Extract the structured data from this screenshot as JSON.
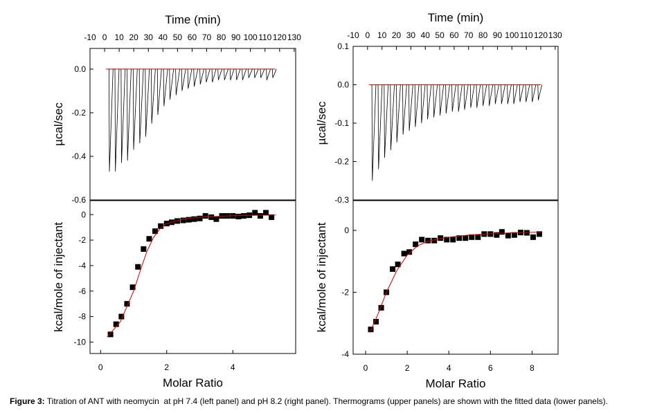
{
  "caption": {
    "label": "Figure 3:",
    "text": " Titration of ANT with neomycin  at pH 7.4 (left panel) and pH 8.2 (right panel). Thermograms (upper panels) are shown with the fitted data (lower panels)."
  },
  "chart_data": [
    {
      "type": "spike",
      "xlabel": "Time (min)",
      "ylabel": "µcal/sec",
      "xaxis_position": "top",
      "xlim": [
        -10,
        131
      ],
      "xticks": [
        -10,
        0,
        10,
        20,
        30,
        40,
        50,
        60,
        70,
        80,
        90,
        100,
        110,
        120,
        130
      ],
      "ylim": [
        -0.6,
        0.095
      ],
      "yticks": [
        {
          "value": 0,
          "label": "0.0"
        },
        -0.2,
        -0.4,
        -0.6
      ],
      "color": "#000000",
      "baseline": 0,
      "baseline_color": "#cc0000",
      "x": [
        3,
        7.1,
        11.3,
        15.4,
        19.6,
        23.8,
        27.9,
        32,
        36.2,
        40.4,
        44.5,
        48.7,
        52.8,
        57,
        61.1,
        65.3,
        69.4,
        73.6,
        77.7,
        81.9,
        86,
        90.2,
        94.3,
        98.5,
        102.6,
        106.8,
        110.9,
        115
      ],
      "values": [
        -0.47,
        -0.47,
        -0.43,
        -0.42,
        -0.37,
        -0.34,
        -0.31,
        -0.25,
        -0.21,
        -0.17,
        -0.14,
        -0.12,
        -0.1,
        -0.09,
        -0.08,
        -0.07,
        -0.06,
        -0.06,
        -0.05,
        -0.05,
        -0.05,
        -0.05,
        -0.05,
        -0.04,
        -0.04,
        -0.04,
        -0.05,
        -0.04
      ]
    },
    {
      "type": "scatter",
      "xlabel": "Molar Ratio",
      "ylabel": "kcal/mole of injectant",
      "xaxis_position": "bottom",
      "xlim": [
        -0.32,
        5.9
      ],
      "xticks": [
        0,
        2,
        4
      ],
      "ylim": [
        -10.9,
        1.1
      ],
      "yticks": [
        0,
        -2,
        -4,
        -6,
        -8,
        -10
      ],
      "series": [
        {
          "color": "#000000",
          "marker": "square",
          "x": [
            0.3,
            0.47,
            0.63,
            0.8,
            0.97,
            1.13,
            1.3,
            1.47,
            1.65,
            1.82,
            2.0,
            2.15,
            2.32,
            2.5,
            2.67,
            2.83,
            3.0,
            3.17,
            3.35,
            3.5,
            3.67,
            3.83,
            4.0,
            4.17,
            4.33,
            4.5,
            4.67,
            4.83,
            5.0,
            5.17
          ],
          "values": [
            -9.4,
            -8.6,
            -8.0,
            -7.0,
            -5.7,
            -4.1,
            -2.7,
            -1.9,
            -1.3,
            -0.9,
            -0.7,
            -0.6,
            -0.5,
            -0.45,
            -0.4,
            -0.35,
            -0.3,
            -0.1,
            -0.2,
            -0.35,
            -0.1,
            -0.1,
            -0.1,
            -0.15,
            -0.1,
            -0.05,
            0.15,
            -0.1,
            0.15,
            -0.2
          ]
        },
        {
          "color": "#cc0000",
          "marker": "line",
          "x": [
            0.2,
            0.6,
            1.0,
            1.2,
            1.4,
            1.6,
            1.8,
            2.0,
            2.5,
            3,
            4,
            5.3
          ],
          "values": [
            -9.6,
            -8.4,
            -6,
            -4.4,
            -2.9,
            -1.8,
            -1.1,
            -0.7,
            -0.35,
            -0.2,
            -0.08,
            -0.03
          ]
        }
      ]
    },
    {
      "type": "spike",
      "xlabel": "Time (min)",
      "ylabel": "µcal/sec",
      "xaxis_position": "top",
      "xlim": [
        -10,
        132
      ],
      "xticks": [
        -10,
        0,
        10,
        20,
        30,
        40,
        50,
        60,
        70,
        80,
        90,
        100,
        110,
        120,
        130
      ],
      "ylim": [
        -0.3,
        0.1
      ],
      "yticks": [
        0.1,
        {
          "value": 0,
          "label": "0.0"
        },
        -0.1,
        -0.2,
        -0.3
      ],
      "color": "#000000",
      "baseline": 0,
      "baseline_color": "#cc0000",
      "x": [
        3,
        7.3,
        11.5,
        15.8,
        20,
        24.3,
        28.6,
        32.8,
        37.1,
        41.3,
        45.6,
        49.9,
        54.1,
        58.4,
        62.7,
        66.9,
        71.2,
        75.4,
        79.7,
        84,
        88.2,
        92.5,
        96.8,
        101,
        105.3,
        109.5,
        113.8,
        118
      ],
      "values": [
        -0.25,
        -0.22,
        -0.19,
        -0.17,
        -0.15,
        -0.13,
        -0.12,
        -0.11,
        -0.1,
        -0.09,
        -0.085,
        -0.08,
        -0.075,
        -0.07,
        -0.07,
        -0.065,
        -0.06,
        -0.06,
        -0.055,
        -0.055,
        -0.05,
        -0.05,
        -0.05,
        -0.05,
        -0.045,
        -0.045,
        -0.045,
        -0.04
      ]
    },
    {
      "type": "scatter",
      "xlabel": "Molar Ratio",
      "ylabel": "kcal/mole of injectant",
      "xaxis_position": "bottom",
      "xlim": [
        -0.6,
        9.25
      ],
      "xticks": [
        0,
        2,
        4,
        6,
        8
      ],
      "ylim": [
        -4,
        0.96
      ],
      "yticks": [
        0,
        -2,
        -4
      ],
      "series": [
        {
          "color": "#000000",
          "marker": "square",
          "x": [
            0.25,
            0.5,
            0.75,
            1.0,
            1.3,
            1.55,
            1.85,
            2.1,
            2.4,
            2.7,
            3.0,
            3.3,
            3.6,
            3.9,
            4.2,
            4.5,
            4.8,
            5.1,
            5.4,
            5.7,
            6.0,
            6.3,
            6.55,
            6.85,
            7.15,
            7.45,
            7.75,
            8.05,
            8.35
          ],
          "values": [
            -3.2,
            -2.95,
            -2.5,
            -2.0,
            -1.25,
            -1.1,
            -0.75,
            -0.7,
            -0.45,
            -0.3,
            -0.33,
            -0.33,
            -0.25,
            -0.3,
            -0.3,
            -0.25,
            -0.25,
            -0.22,
            -0.22,
            -0.12,
            -0.12,
            -0.15,
            -0.05,
            -0.17,
            -0.15,
            -0.07,
            -0.08,
            -0.22,
            -0.12
          ]
        },
        {
          "color": "#cc0000",
          "marker": "line",
          "x": [
            0.2,
            0.6,
            1,
            1.5,
            2,
            2.5,
            3,
            4,
            5,
            6,
            7,
            8.4
          ],
          "values": [
            -3.3,
            -2.7,
            -2.0,
            -1.3,
            -0.8,
            -0.5,
            -0.35,
            -0.22,
            -0.15,
            -0.11,
            -0.08,
            -0.06
          ]
        }
      ]
    }
  ]
}
